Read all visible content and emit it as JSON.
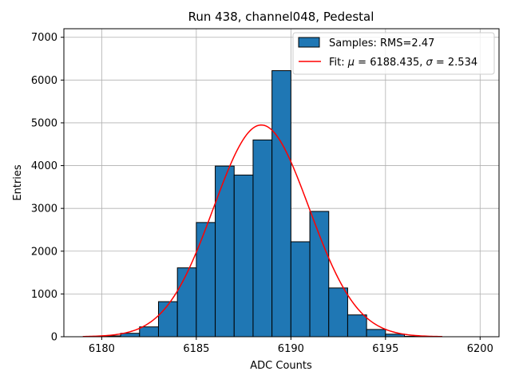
{
  "chart_data": {
    "type": "histogram",
    "title": "Run 438, channel048, Pedestal",
    "xlabel": "ADC Counts",
    "ylabel": "Entries",
    "xlim": [
      6178.0,
      6201.0
    ],
    "ylim": [
      0,
      7200
    ],
    "xticks": [
      6180,
      6185,
      6190,
      6195,
      6200
    ],
    "yticks": [
      0,
      1000,
      2000,
      3000,
      4000,
      5000,
      6000,
      7000
    ],
    "grid": true,
    "legend_position": "top-right",
    "bin_edges": [
      6180,
      6181,
      6182,
      6183,
      6184,
      6185,
      6186,
      6187,
      6188,
      6189,
      6190,
      6191,
      6192,
      6193,
      6194,
      6195,
      6196,
      6197
    ],
    "counts": [
      20,
      80,
      230,
      820,
      1610,
      2670,
      3990,
      3780,
      4600,
      6220,
      2220,
      2930,
      1140,
      510,
      170,
      60,
      10
    ],
    "fit": {
      "type": "gaussian",
      "mu": 6188.435,
      "sigma": 2.534,
      "amplitude": 4950,
      "x_range": [
        6179,
        6198
      ]
    },
    "series": [
      {
        "name": "Samples: RMS=2.47",
        "kind": "bars",
        "color": "#1f77b4",
        "edgecolor": "#000000"
      },
      {
        "name_prefix": "Fit: ",
        "name_mu_symbol": "μ",
        "name_mu_value": " = 6188.435, ",
        "name_sigma_symbol": "σ",
        "name_sigma_value": " = 2.534",
        "kind": "line",
        "color": "#ff0000"
      }
    ]
  }
}
